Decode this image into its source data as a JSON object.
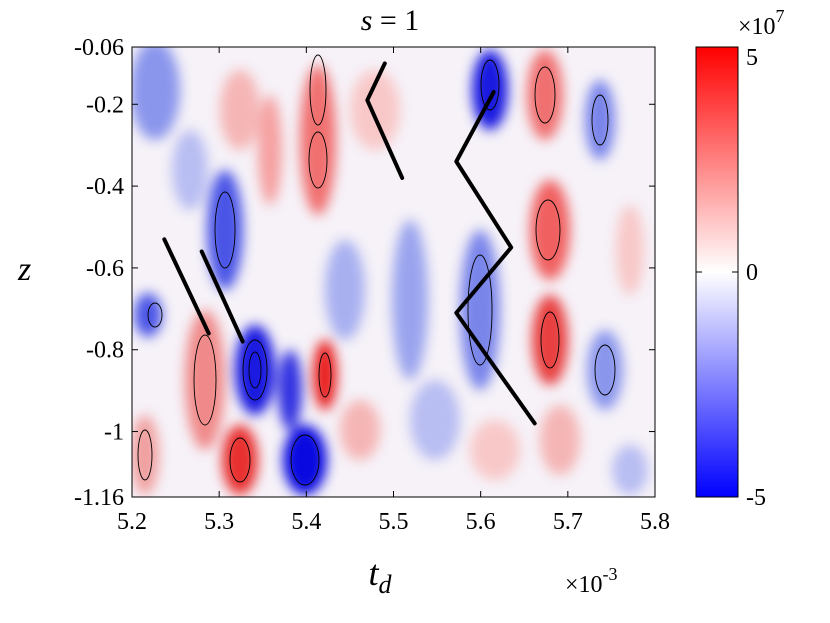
{
  "chart_data": {
    "type": "heatmap",
    "title": {
      "var": "s",
      "op": "=",
      "val": "1"
    },
    "xlabel": {
      "main": "t",
      "sub": "d"
    },
    "ylabel": "z",
    "xlim": [
      5.2,
      5.8
    ],
    "ylim": [
      -1.16,
      -0.06
    ],
    "x_ticks": [
      "5.2",
      "5.3",
      "5.4",
      "5.5",
      "5.6",
      "5.7",
      "5.8"
    ],
    "y_ticks": [
      "-0.06",
      "-0.2",
      "-0.4",
      "-0.6",
      "-0.8",
      "-1",
      "-1.16"
    ],
    "x_exponent": {
      "base": "×10",
      "exp": "-3"
    },
    "colorbar": {
      "range": [
        -5,
        5
      ],
      "ticks": [
        "5",
        "0",
        "-5"
      ],
      "exponent": {
        "base": "×10",
        "exp": "7"
      },
      "colors": [
        "#0000ff",
        "#ffffff",
        "#ff0000"
      ]
    },
    "overlay_lines": [
      [
        [
          5.237,
          -0.53
        ],
        [
          5.288,
          -0.76
        ]
      ],
      [
        [
          5.28,
          -0.56
        ],
        [
          5.327,
          -0.78
        ]
      ],
      [
        [
          5.49,
          -0.1
        ],
        [
          5.47,
          -0.19
        ],
        [
          5.51,
          -0.38
        ]
      ],
      [
        [
          5.615,
          -0.17
        ],
        [
          5.572,
          -0.34
        ],
        [
          5.635,
          -0.55
        ],
        [
          5.572,
          -0.71
        ],
        [
          5.662,
          -0.98
        ]
      ]
    ]
  }
}
